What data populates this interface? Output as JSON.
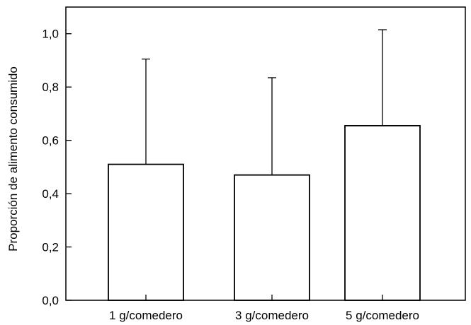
{
  "chart_data": {
    "type": "bar",
    "title": "",
    "xlabel": "",
    "ylabel": "Proporción de alimento consumido",
    "categories": [
      "1 g/comedero",
      "3 g/comedero",
      "5 g/comedero"
    ],
    "series": [
      {
        "values": [
          0.51,
          0.47,
          0.655
        ],
        "error_upper": [
          0.395,
          0.365,
          0.36
        ]
      }
    ],
    "ylim": [
      0,
      1.1
    ],
    "yticks": [
      0.0,
      0.2,
      0.4,
      0.6,
      0.8,
      1.0
    ],
    "ytick_labels": [
      "0,0",
      "0,2",
      "0,4",
      "0,6",
      "0,8",
      "1,0"
    ],
    "grid": false,
    "legend": "none",
    "bar_fill": "#ffffff",
    "stroke_color": "#000000"
  }
}
